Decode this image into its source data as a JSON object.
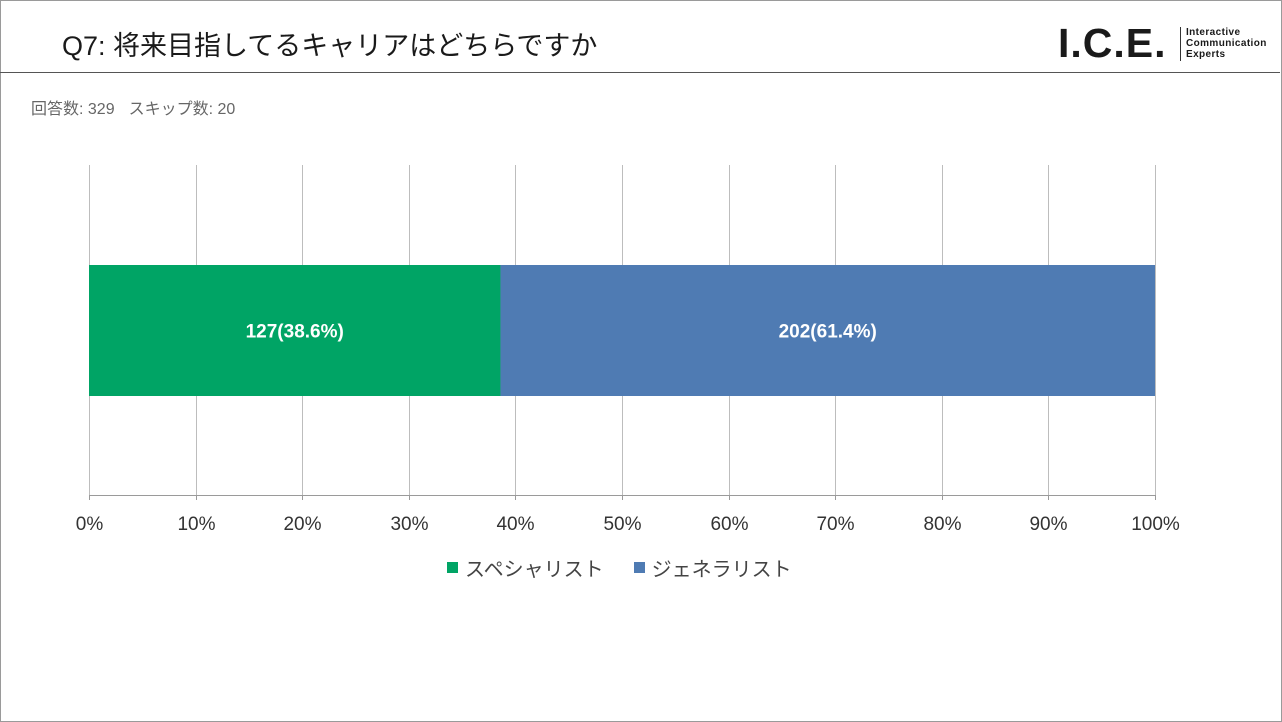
{
  "header": {
    "title": "Q7: 将来目指してるキャリアはどちらですか",
    "logo": {
      "mark": "I.C.E.",
      "lines": [
        "Interactive",
        "Communication",
        "Experts"
      ]
    }
  },
  "stats": {
    "responses": "回答数: 329",
    "skipped": "スキップ数: 20"
  },
  "chart_data": {
    "type": "bar",
    "orientation": "horizontal",
    "stacked": true,
    "title": "",
    "xlabel": "",
    "ylabel": "",
    "xlim": [
      0,
      100
    ],
    "grid": true,
    "ticks": [
      "0%",
      "10%",
      "20%",
      "30%",
      "40%",
      "50%",
      "60%",
      "70%",
      "80%",
      "90%",
      "100%"
    ],
    "series": [
      {
        "name": "スペシャリスト",
        "count": 127,
        "percent": 38.6,
        "label": "127(38.6%)",
        "color": "#00a465"
      },
      {
        "name": "ジェネラリスト",
        "count": 202,
        "percent": 61.4,
        "label": "202(61.4%)",
        "color": "#4f7bb3"
      }
    ],
    "legend_position": "bottom"
  }
}
